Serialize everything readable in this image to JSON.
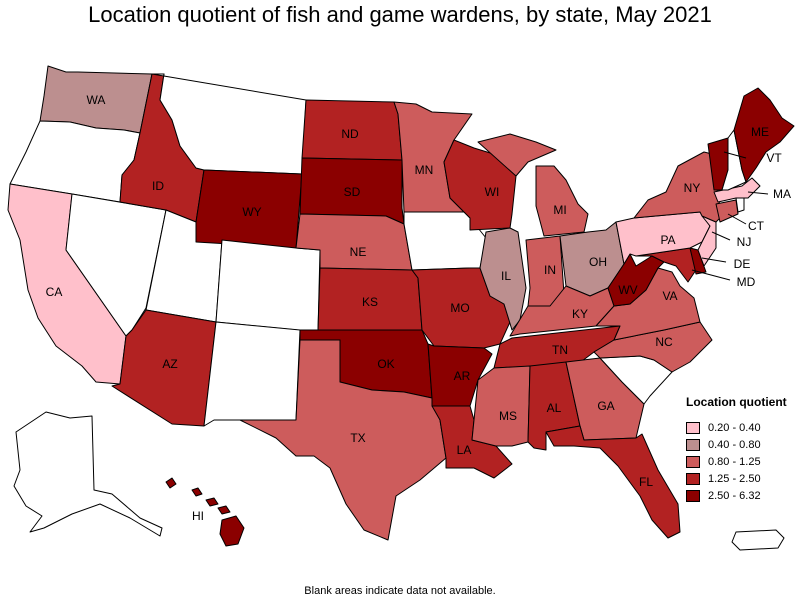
{
  "title": "Location quotient of fish and game wardens, by state, May 2021",
  "footnote": "Blank areas indicate data not available.",
  "legend": {
    "title": "Location quotient",
    "items": [
      {
        "label": "0.20 - 0.40",
        "color": "#ffc0cb"
      },
      {
        "label": "0.40 - 0.80",
        "color": "#bc8f8f"
      },
      {
        "label": "0.80 - 1.25",
        "color": "#cd5c5c"
      },
      {
        "label": "1.25 - 2.50",
        "color": "#b22222"
      },
      {
        "label": "2.50 - 6.32",
        "color": "#8b0000"
      }
    ]
  },
  "no_data_color": "#ffffff",
  "states": [
    {
      "abbr": "WA",
      "class": 1
    },
    {
      "abbr": "OR",
      "class": null
    },
    {
      "abbr": "CA",
      "class": 0
    },
    {
      "abbr": "ID",
      "class": 3
    },
    {
      "abbr": "NV",
      "class": null
    },
    {
      "abbr": "UT",
      "class": null
    },
    {
      "abbr": "AZ",
      "class": 3
    },
    {
      "abbr": "MT",
      "class": null
    },
    {
      "abbr": "WY",
      "class": 4
    },
    {
      "abbr": "CO",
      "class": null
    },
    {
      "abbr": "NM",
      "class": null
    },
    {
      "abbr": "ND",
      "class": 3
    },
    {
      "abbr": "SD",
      "class": 4
    },
    {
      "abbr": "NE",
      "class": 2
    },
    {
      "abbr": "KS",
      "class": 3
    },
    {
      "abbr": "OK",
      "class": 4
    },
    {
      "abbr": "TX",
      "class": 2
    },
    {
      "abbr": "MN",
      "class": 2
    },
    {
      "abbr": "IA",
      "class": null
    },
    {
      "abbr": "MO",
      "class": 3
    },
    {
      "abbr": "AR",
      "class": 4
    },
    {
      "abbr": "LA",
      "class": 3
    },
    {
      "abbr": "WI",
      "class": 3
    },
    {
      "abbr": "IL",
      "class": 1
    },
    {
      "abbr": "MI",
      "class": 2
    },
    {
      "abbr": "IN",
      "class": 2
    },
    {
      "abbr": "OH",
      "class": 1
    },
    {
      "abbr": "KY",
      "class": 2
    },
    {
      "abbr": "TN",
      "class": 3
    },
    {
      "abbr": "MS",
      "class": 2
    },
    {
      "abbr": "AL",
      "class": 3
    },
    {
      "abbr": "GA",
      "class": 2
    },
    {
      "abbr": "FL",
      "class": 3
    },
    {
      "abbr": "SC",
      "class": null
    },
    {
      "abbr": "NC",
      "class": 2
    },
    {
      "abbr": "VA",
      "class": 2
    },
    {
      "abbr": "WV",
      "class": 4
    },
    {
      "abbr": "PA",
      "class": 0
    },
    {
      "abbr": "NY",
      "class": 2
    },
    {
      "abbr": "ME",
      "class": 4
    },
    {
      "abbr": "VT",
      "class": 4
    },
    {
      "abbr": "NH",
      "class": null
    },
    {
      "abbr": "MA",
      "class": 0
    },
    {
      "abbr": "CT",
      "class": 2
    },
    {
      "abbr": "RI",
      "class": null
    },
    {
      "abbr": "NJ",
      "class": 0
    },
    {
      "abbr": "DE",
      "class": 4
    },
    {
      "abbr": "MD",
      "class": 3
    },
    {
      "abbr": "AK",
      "class": null
    },
    {
      "abbr": "HI",
      "class": 4
    },
    {
      "abbr": "PR",
      "class": null
    }
  ]
}
